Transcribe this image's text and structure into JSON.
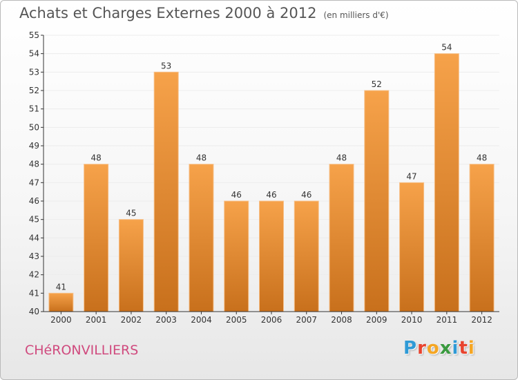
{
  "header": {
    "title": "Achats et Charges Externes 2000 à 2012",
    "subtitle": "(en milliers d'€)"
  },
  "footer": {
    "commune": "CHéRONVILLIERS",
    "logo_text": "Proxiti",
    "logo_colors": [
      "#2f9ad6",
      "#e8432e",
      "#f5a623",
      "#3a9a3f",
      "#2f9ad6",
      "#e8432e",
      "#f5a623"
    ]
  },
  "colors": {
    "bar_light": "#f6a24a",
    "bar_dark": "#c8701c",
    "axis": "#333333",
    "grid": "#ececec"
  },
  "chart_data": {
    "type": "bar",
    "categories": [
      "2000",
      "2001",
      "2002",
      "2003",
      "2004",
      "2005",
      "2006",
      "2007",
      "2008",
      "2009",
      "2010",
      "2011",
      "2012"
    ],
    "values": [
      41,
      48,
      45,
      53,
      48,
      46,
      46,
      46,
      48,
      52,
      47,
      54,
      48
    ],
    "ylim": [
      40,
      55
    ],
    "yticks": [
      40,
      41,
      42,
      43,
      44,
      45,
      46,
      47,
      48,
      49,
      50,
      51,
      52,
      53,
      54,
      55
    ],
    "data_labels": true,
    "grid": true
  }
}
